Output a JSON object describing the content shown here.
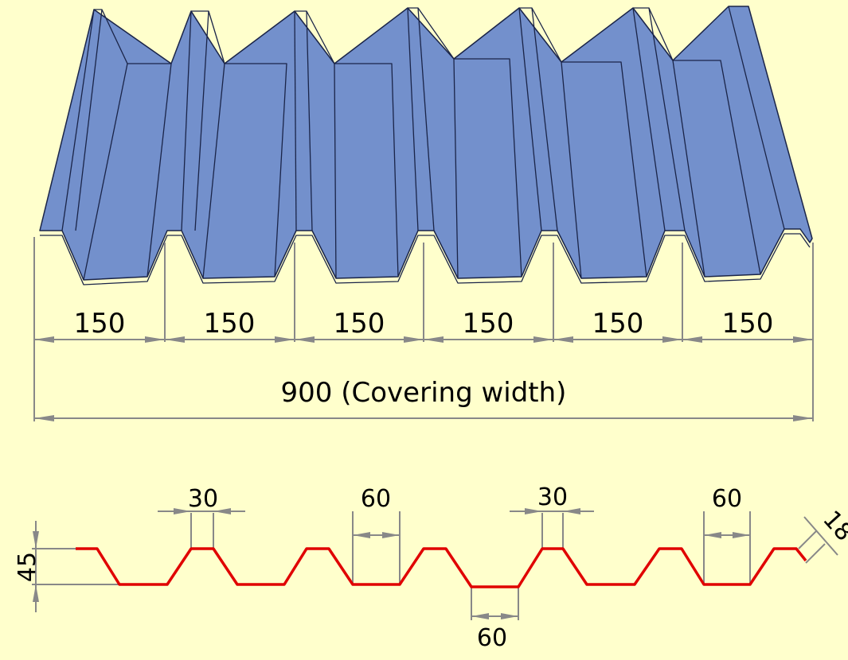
{
  "colors": {
    "background": "#FFFFCC",
    "sheet_fill": "#7390CC",
    "sheet_stroke": "#1A2448",
    "profile_line": "#E00000",
    "dimension_line": "#888888",
    "text": "#000000"
  },
  "top_view": {
    "module_labels": [
      "150",
      "150",
      "150",
      "150",
      "150",
      "150"
    ],
    "total_label": "900 (Covering width)"
  },
  "profile": {
    "height_label": "45",
    "top_labels": [
      "30",
      "60",
      "30",
      "60"
    ],
    "bottom_label": "60",
    "edge_label": "18"
  }
}
